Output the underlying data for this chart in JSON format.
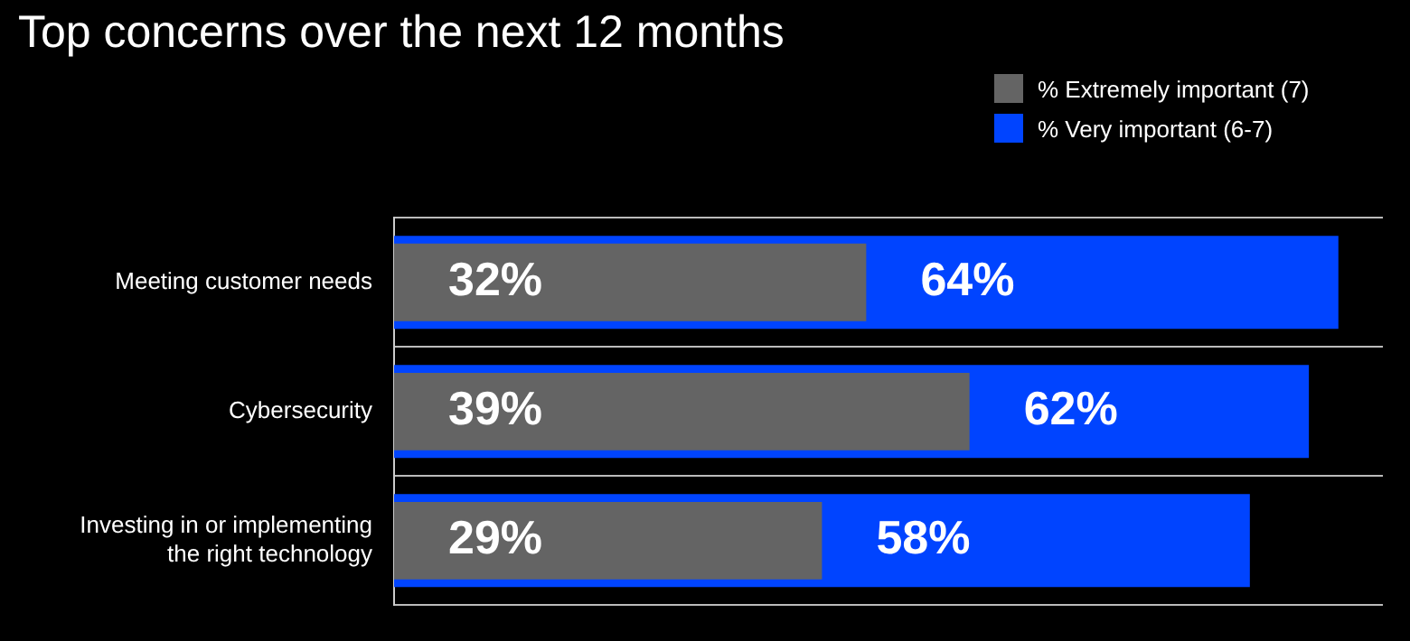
{
  "chart_data": {
    "type": "bar",
    "orientation": "horizontal",
    "title": "Top concerns over the next 12 months",
    "categories": [
      "Meeting customer needs",
      "Cybersecurity",
      "Investing in or implementing the right technology"
    ],
    "series": [
      {
        "name": "% Extremely important (7)",
        "color": "#646464",
        "values": [
          32,
          39,
          29
        ],
        "value_labels": [
          "32%",
          "39%",
          "29%"
        ]
      },
      {
        "name": "% Very important (6-7)",
        "color": "#0044ff",
        "values": [
          64,
          62,
          58
        ],
        "value_labels": [
          "64%",
          "62%",
          "58%"
        ]
      }
    ],
    "grid": "y",
    "legend": "top right"
  }
}
